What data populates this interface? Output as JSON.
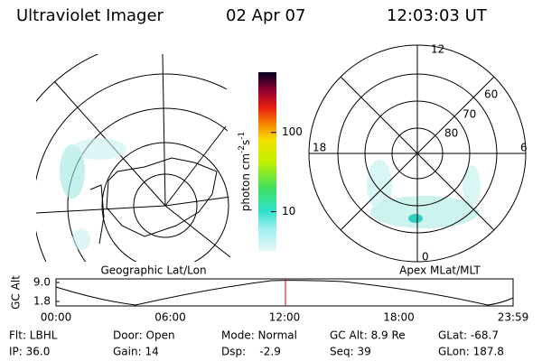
{
  "header": {
    "title": "Ultraviolet Imager",
    "date": "02 Apr 07",
    "time": "12:03:03 UT"
  },
  "map": {
    "label": "Geographic Lat/Lon"
  },
  "colorbar": {
    "label_parts": [
      "photon cm",
      "-2",
      "s",
      "-1"
    ],
    "ticks": [
      10,
      100
    ],
    "ylim": [
      3.2,
      575
    ],
    "log_scale": true
  },
  "polar": {
    "label": "Apex MLat/MLT",
    "mlt": [
      "12",
      "18",
      "6",
      "0"
    ],
    "lat": [
      "60",
      "70",
      "80"
    ]
  },
  "orbit": {
    "ylabel": "GC Alt",
    "yticks": [
      {
        "value": 9,
        "label": "9.0"
      },
      {
        "value": 1.8,
        "label": "1.8"
      }
    ],
    "ylim": [
      1.8,
      9
    ],
    "xticks": [
      "00:00",
      "06:00",
      "12:00",
      "18:00",
      "23:59"
    ]
  },
  "info": {
    "rows": [
      [
        "Flt: LBHL",
        "Door: Open",
        "Mode: Normal",
        "GC Alt: 8.9 Re",
        "GLat: -68.7"
      ],
      [
        "IP: 36.0",
        "Gain: 14",
        "Dsp:    -2.9",
        "Seq: 39",
        "GLon: 187.8"
      ]
    ]
  }
}
